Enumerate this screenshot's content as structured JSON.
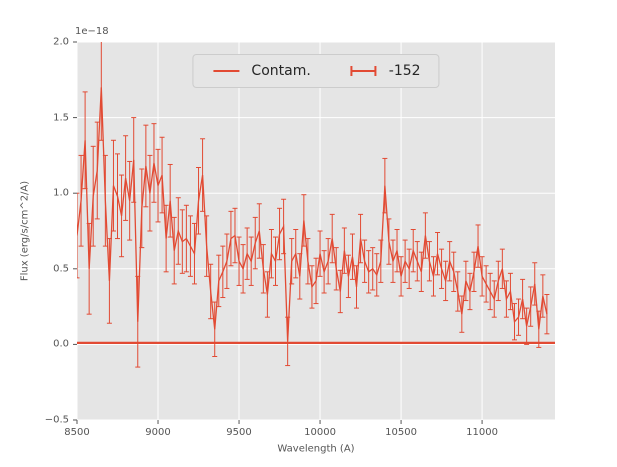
{
  "figure": {
    "background": "#ffffff",
    "axes_background": "#e5e5e5",
    "grid_color": "#ffffff",
    "tick_color": "#555555",
    "text_color": "#555555",
    "legend_text_color": "#262626",
    "accent_color": "#e24a33"
  },
  "legend": {
    "position": "upper center",
    "items": [
      {
        "label": "Contam.",
        "marker": "line"
      },
      {
        "label": "-152",
        "marker": "errorbar"
      }
    ]
  },
  "chart_data": {
    "type": "line",
    "title": "",
    "xlabel": "Wavelength (A)",
    "ylabel": "Flux (erg/s/cm^2/A)",
    "offset_text": "1e−18",
    "value_scale": "1e-18",
    "grid": true,
    "xlim": [
      8500,
      11450
    ],
    "ylim": [
      -0.5,
      2.0
    ],
    "xticks": {
      "values": [
        8500,
        9000,
        9500,
        10000,
        10500,
        11000
      ],
      "labels": [
        "8500",
        "9000",
        "9500",
        "10000",
        "10500",
        "11000"
      ]
    },
    "yticks": {
      "values": [
        -0.5,
        0.0,
        0.5,
        1.0,
        1.5,
        2.0
      ],
      "labels": [
        "−0.5",
        "0.0",
        "0.5",
        "1.0",
        "1.5",
        "2.0"
      ]
    },
    "series": [
      {
        "name": "Contam.",
        "style": "line",
        "x": [
          8500,
          11450
        ],
        "y": [
          0.01,
          0.01
        ]
      },
      {
        "name": "-152",
        "style": "errorbar",
        "x": [
          8500,
          8525,
          8550,
          8575,
          8600,
          8625,
          8650,
          8675,
          8700,
          8725,
          8750,
          8775,
          8800,
          8825,
          8850,
          8875,
          8900,
          8925,
          8950,
          8975,
          9000,
          9025,
          9050,
          9075,
          9100,
          9125,
          9150,
          9175,
          9200,
          9225,
          9250,
          9275,
          9300,
          9325,
          9350,
          9375,
          9400,
          9425,
          9450,
          9475,
          9500,
          9525,
          9550,
          9575,
          9600,
          9625,
          9650,
          9675,
          9700,
          9725,
          9750,
          9775,
          9800,
          9825,
          9850,
          9875,
          9900,
          9925,
          9950,
          9975,
          10000,
          10025,
          10050,
          10075,
          10100,
          10125,
          10150,
          10175,
          10200,
          10225,
          10250,
          10275,
          10300,
          10325,
          10350,
          10375,
          10400,
          10425,
          10450,
          10475,
          10500,
          10525,
          10550,
          10575,
          10600,
          10625,
          10650,
          10675,
          10700,
          10725,
          10750,
          10775,
          10800,
          10825,
          10850,
          10875,
          10900,
          10925,
          10950,
          10975,
          11000,
          11025,
          11050,
          11075,
          11100,
          11125,
          11150,
          11175,
          11200,
          11225,
          11250,
          11275,
          11300,
          11325,
          11350,
          11375,
          11400
        ],
        "y": [
          0.72,
          0.95,
          1.35,
          0.5,
          0.98,
          1.15,
          1.7,
          0.95,
          0.42,
          1.05,
          0.98,
          0.85,
          1.1,
          0.95,
          1.22,
          0.15,
          0.9,
          1.18,
          1.0,
          1.2,
          1.05,
          1.12,
          0.7,
          0.95,
          0.62,
          0.75,
          0.68,
          0.7,
          0.65,
          0.6,
          0.95,
          1.12,
          0.65,
          0.35,
          0.1,
          0.42,
          0.48,
          0.55,
          0.7,
          0.72,
          0.55,
          0.5,
          0.6,
          0.55,
          0.67,
          0.75,
          0.5,
          0.33,
          0.6,
          0.55,
          0.73,
          0.78,
          0.02,
          0.55,
          0.6,
          0.45,
          0.82,
          0.55,
          0.38,
          0.42,
          0.6,
          0.48,
          0.55,
          0.7,
          0.5,
          0.35,
          0.62,
          0.45,
          0.58,
          0.38,
          0.7,
          0.55,
          0.48,
          0.5,
          0.46,
          0.55,
          1.05,
          0.68,
          0.55,
          0.62,
          0.45,
          0.55,
          0.5,
          0.62,
          0.55,
          0.48,
          0.72,
          0.55,
          0.45,
          0.6,
          0.5,
          0.42,
          0.55,
          0.48,
          0.35,
          0.2,
          0.42,
          0.35,
          0.48,
          0.65,
          0.45,
          0.4,
          0.35,
          0.3,
          0.42,
          0.5,
          0.3,
          0.35,
          0.15,
          0.18,
          0.3,
          0.12,
          0.25,
          0.4,
          0.1,
          0.32,
          0.2
        ],
        "yerr": [
          0.28,
          0.3,
          0.32,
          0.3,
          0.33,
          0.32,
          0.35,
          0.3,
          0.28,
          0.3,
          0.28,
          0.27,
          0.28,
          0.26,
          0.28,
          0.3,
          0.26,
          0.27,
          0.25,
          0.26,
          0.24,
          0.25,
          0.22,
          0.24,
          0.22,
          0.22,
          0.21,
          0.22,
          0.2,
          0.2,
          0.22,
          0.24,
          0.2,
          0.18,
          0.18,
          0.17,
          0.17,
          0.18,
          0.18,
          0.18,
          0.16,
          0.16,
          0.17,
          0.16,
          0.17,
          0.18,
          0.16,
          0.15,
          0.16,
          0.16,
          0.17,
          0.18,
          0.16,
          0.15,
          0.16,
          0.15,
          0.17,
          0.15,
          0.14,
          0.15,
          0.15,
          0.14,
          0.15,
          0.16,
          0.14,
          0.14,
          0.15,
          0.14,
          0.15,
          0.14,
          0.16,
          0.14,
          0.14,
          0.14,
          0.14,
          0.14,
          0.18,
          0.15,
          0.14,
          0.14,
          0.13,
          0.14,
          0.13,
          0.14,
          0.13,
          0.13,
          0.15,
          0.13,
          0.13,
          0.14,
          0.13,
          0.13,
          0.13,
          0.13,
          0.13,
          0.12,
          0.13,
          0.12,
          0.13,
          0.14,
          0.13,
          0.12,
          0.12,
          0.12,
          0.13,
          0.13,
          0.12,
          0.12,
          0.12,
          0.12,
          0.13,
          0.12,
          0.13,
          0.14,
          0.12,
          0.14,
          0.13
        ]
      }
    ]
  }
}
